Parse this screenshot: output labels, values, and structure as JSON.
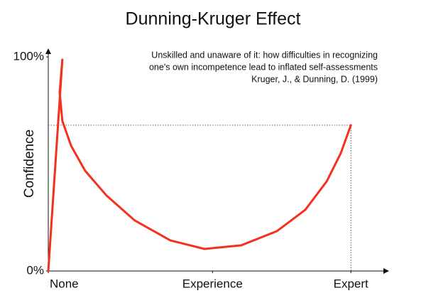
{
  "chart_data": {
    "type": "line",
    "title": "Dunning-Kruger Effect",
    "annotation": [
      "Unskilled and unaware of it: how difficulties in recognizing",
      "one's own incompetence lead to inflated self-assessments",
      "Kruger, J., & Dunning, D. (1999)"
    ],
    "ylabel": "Confidence",
    "x": [
      0,
      4.2,
      3.4,
      4.2,
      6.8,
      11.0,
      17.4,
      25.8,
      36.4,
      46.6,
      57.6,
      68.2,
      76.7,
      83.1,
      87.3,
      90.3
    ],
    "values": [
      0,
      98.7,
      83.4,
      70.1,
      58.5,
      46.8,
      35.2,
      23.6,
      14.3,
      10.3,
      12.0,
      18.6,
      28.6,
      41.9,
      55.1,
      68.1
    ],
    "color": "#f5301e",
    "xlim": [
      0,
      100
    ],
    "ylim": [
      0,
      100
    ],
    "xticks": [
      {
        "value": 0,
        "label": "None"
      },
      {
        "value": 49,
        "label": "Experience"
      },
      {
        "value": 90.3,
        "label": "Expert"
      }
    ],
    "yticks": [
      {
        "value": 0,
        "label": "0%"
      },
      {
        "value": 100,
        "label": "100%"
      }
    ]
  }
}
